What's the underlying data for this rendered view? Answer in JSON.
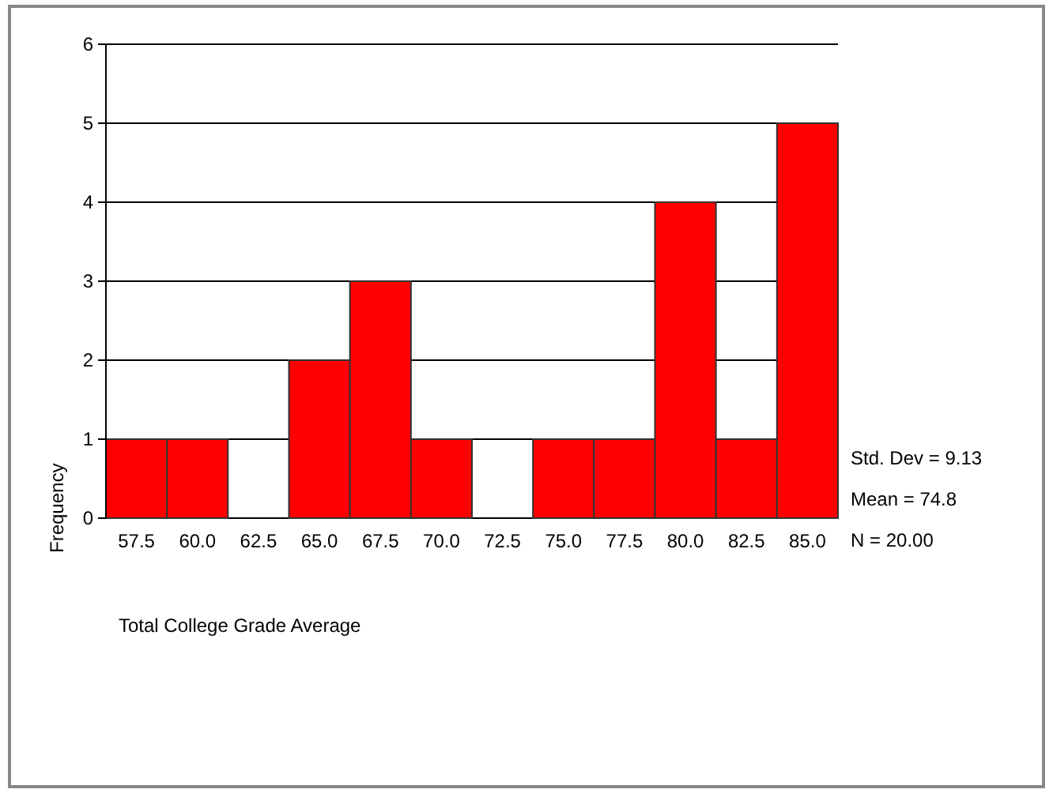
{
  "chart_data": {
    "type": "bar",
    "xlabel": "Total College Grade Average",
    "ylabel": "Frequency",
    "categories": [
      "57.5",
      "60.0",
      "62.5",
      "65.0",
      "67.5",
      "70.0",
      "72.5",
      "75.0",
      "77.5",
      "80.0",
      "82.5",
      "85.0"
    ],
    "values": [
      1,
      1,
      0,
      2,
      3,
      1,
      0,
      1,
      1,
      4,
      1,
      5
    ],
    "color": "#ff0000",
    "ylim": [
      0,
      6
    ],
    "yticks": [
      0,
      1,
      2,
      3,
      4,
      5,
      6
    ],
    "grid": "y",
    "annotations": [
      "Std. Dev = 9.13",
      "Mean = 74.8",
      "N = 20.00"
    ]
  }
}
